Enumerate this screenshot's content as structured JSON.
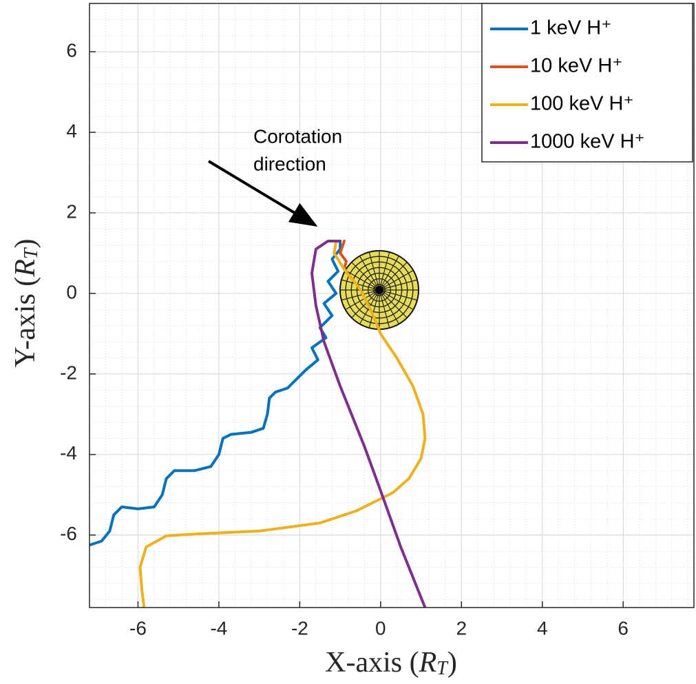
{
  "chart_data": {
    "type": "line",
    "xlabel": [
      "X-axis (",
      "R",
      "T",
      ")"
    ],
    "ylabel": [
      "Y-axis (",
      "R",
      "T",
      ")"
    ],
    "xlim": [
      -7.2,
      7.75
    ],
    "ylim": [
      -7.8,
      7.2
    ],
    "xticks": [
      -6,
      -4,
      -2,
      0,
      2,
      4,
      6
    ],
    "yticks": [
      -6,
      -4,
      -2,
      0,
      2,
      4,
      6
    ],
    "grid": true,
    "minor_grid": true,
    "legend": "upper right",
    "annotation": [
      "Corotation",
      "direction"
    ],
    "series": [
      {
        "name": "1 keV H⁺",
        "color": "#0072bd",
        "x": [
          -1.0,
          -1.0,
          -1.2,
          -1.05,
          -1.3,
          -1.1,
          -1.4,
          -1.2,
          -1.5,
          -1.35,
          -1.7,
          -1.55,
          -1.85,
          -2.0,
          -2.15,
          -2.3,
          -2.6,
          -2.75,
          -2.8,
          -2.9,
          -3.2,
          -3.7,
          -3.9,
          -4.0,
          -4.2,
          -4.6,
          -5.1,
          -5.3,
          -5.4,
          -5.6,
          -6.0,
          -6.4,
          -6.6,
          -6.7,
          -6.9,
          -7.2
        ],
        "y": [
          1.3,
          1.1,
          0.85,
          0.55,
          0.3,
          0.0,
          -0.25,
          -0.55,
          -0.85,
          -1.1,
          -1.35,
          -1.65,
          -1.9,
          -2.05,
          -2.2,
          -2.35,
          -2.45,
          -2.6,
          -3.0,
          -3.35,
          -3.45,
          -3.5,
          -3.6,
          -4.0,
          -4.3,
          -4.4,
          -4.4,
          -4.6,
          -5.0,
          -5.3,
          -5.35,
          -5.3,
          -5.5,
          -5.9,
          -6.15,
          -6.25
        ]
      },
      {
        "name": "10 keV H⁺",
        "color": "#d95319",
        "x": [
          -0.9,
          -1.0,
          -0.85,
          -0.9,
          -0.7
        ],
        "y": [
          1.3,
          1.0,
          0.8,
          0.6,
          0.35
        ]
      },
      {
        "name": "100 keV H⁺",
        "color": "#edb120",
        "x": [
          -1.1,
          -1.15,
          -0.9,
          -0.5,
          -0.2,
          0.0,
          0.4,
          0.8,
          1.05,
          1.1,
          1.0,
          0.7,
          0.3,
          0.0,
          -0.6,
          -1.5,
          -3.0,
          -4.5,
          -5.3,
          -5.8,
          -5.95,
          -5.9,
          -5.85
        ],
        "y": [
          1.3,
          1.0,
          0.6,
          0.1,
          -0.5,
          -1.0,
          -1.6,
          -2.3,
          -3.0,
          -3.6,
          -4.1,
          -4.6,
          -4.95,
          -5.1,
          -5.4,
          -5.7,
          -5.9,
          -5.97,
          -6.02,
          -6.3,
          -6.8,
          -7.4,
          -7.8
        ]
      },
      {
        "name": "1000 keV H⁺",
        "color": "#7e2f8e",
        "x": [
          -1.0,
          -1.3,
          -1.6,
          -1.7,
          -1.6,
          -1.4,
          -1.0,
          -0.4,
          0.0,
          0.5,
          1.1
        ],
        "y": [
          1.3,
          1.3,
          1.1,
          0.5,
          -0.3,
          -1.2,
          -2.3,
          -3.8,
          -4.9,
          -6.3,
          -7.8
        ]
      }
    ]
  }
}
